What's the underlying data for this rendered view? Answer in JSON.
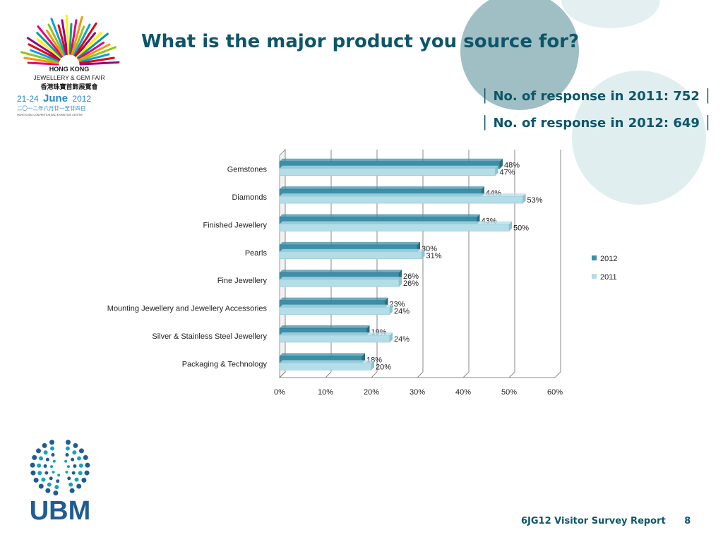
{
  "title": "What is the major product you source for?",
  "responses": {
    "r2011": "│ No. of response in 2011: 752 │",
    "r2012": "│ No. of response in 2012: 649 │"
  },
  "fair_logo": {
    "lines": [
      "HONG KONG",
      "JEWELLERY & GEM FAIR",
      "香港珠寶首飾展覽會",
      "21-24",
      "June",
      "2012",
      "二〇一二年六月廿一至廿四日",
      "HONG KONG CONVENTION AND EXHIBITION CENTRE"
    ]
  },
  "ubm_logo": {
    "text": "UBM"
  },
  "footer": {
    "report": "6JG12 Visitor Survey Report",
    "page": "8"
  },
  "colors": {
    "s2012": "#3d8fa8",
    "s2011": "#b4dde8",
    "title": "#0d5669",
    "circle": "#9fc0c6"
  },
  "chart_data": {
    "type": "bar",
    "orientation": "horizontal",
    "categories": [
      "Gemstones",
      "Diamonds",
      "Finished Jewellery",
      "Pearls",
      "Fine Jewellery",
      "Mounting Jewellery and Jewellery Accessories",
      "Silver & Stainless Steel Jewellery",
      "Packaging & Technology"
    ],
    "series": [
      {
        "name": "2012",
        "values": [
          48,
          44,
          43,
          30,
          26,
          23,
          19,
          18
        ]
      },
      {
        "name": "2011",
        "values": [
          47,
          53,
          50,
          31,
          26,
          24,
          24,
          20
        ]
      }
    ],
    "xlim": [
      0,
      60
    ],
    "xticks": [
      "0%",
      "10%",
      "20%",
      "30%",
      "40%",
      "50%",
      "60%"
    ],
    "value_suffix": "%",
    "grid": true,
    "legend": "right"
  }
}
